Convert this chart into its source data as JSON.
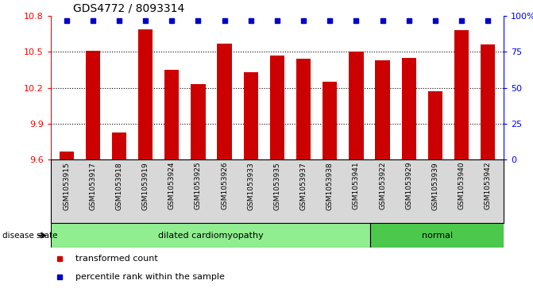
{
  "title": "GDS4772 / 8093314",
  "samples": [
    "GSM1053915",
    "GSM1053917",
    "GSM1053918",
    "GSM1053919",
    "GSM1053924",
    "GSM1053925",
    "GSM1053926",
    "GSM1053933",
    "GSM1053935",
    "GSM1053937",
    "GSM1053938",
    "GSM1053941",
    "GSM1053922",
    "GSM1053929",
    "GSM1053939",
    "GSM1053940",
    "GSM1053942"
  ],
  "transformed_count": [
    9.67,
    10.51,
    9.83,
    10.69,
    10.35,
    10.23,
    10.57,
    10.33,
    10.47,
    10.44,
    10.25,
    10.5,
    10.43,
    10.45,
    10.17,
    10.68,
    10.56
  ],
  "percentile_rank": [
    100,
    100,
    100,
    100,
    100,
    100,
    100,
    100,
    100,
    100,
    100,
    100,
    100,
    100,
    100,
    100,
    100
  ],
  "groups": [
    {
      "label": "dilated cardiomyopathy",
      "count": 12,
      "color": "#90EE90"
    },
    {
      "label": "normal",
      "count": 5,
      "color": "#4CC94C"
    }
  ],
  "ylim_left": [
    9.6,
    10.8
  ],
  "ylim_right": [
    0,
    100
  ],
  "yticks_left": [
    9.6,
    9.9,
    10.2,
    10.5,
    10.8
  ],
  "yticks_right": [
    0,
    25,
    50,
    75,
    100
  ],
  "bar_color": "#cc0000",
  "dot_color": "#0000cc",
  "label_bg_color": "#d8d8d8",
  "legend_items": [
    {
      "label": "transformed count",
      "color": "#cc0000"
    },
    {
      "label": "percentile rank within the sample",
      "color": "#0000cc"
    }
  ]
}
